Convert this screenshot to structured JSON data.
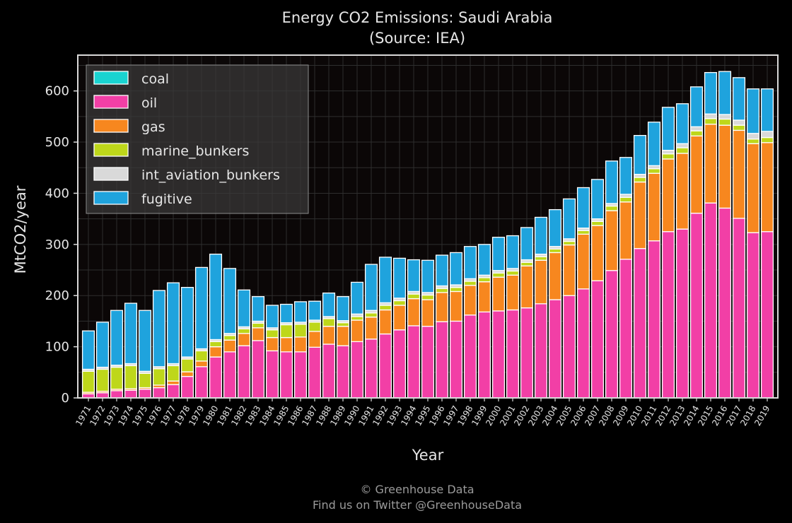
{
  "chart_data": {
    "type": "bar",
    "stacked": true,
    "title": "Energy CO2 Emissions: Saudi Arabia",
    "subtitle": "(Source: IEA)",
    "xlabel": "Year",
    "ylabel": "MtCO2/year",
    "ylim": [
      0,
      670
    ],
    "yticks": [
      0,
      100,
      200,
      300,
      400,
      500,
      600
    ],
    "grid": true,
    "legend_position": "top-left",
    "categories": [
      "1971",
      "1972",
      "1973",
      "1974",
      "1975",
      "1976",
      "1977",
      "1978",
      "1979",
      "1980",
      "1981",
      "1982",
      "1983",
      "1984",
      "1985",
      "1986",
      "1987",
      "1988",
      "1989",
      "1990",
      "1991",
      "1992",
      "1993",
      "1994",
      "1995",
      "1996",
      "1997",
      "1998",
      "1999",
      "2000",
      "2001",
      "2002",
      "2003",
      "2004",
      "2005",
      "2006",
      "2007",
      "2008",
      "2009",
      "2010",
      "2011",
      "2012",
      "2013",
      "2014",
      "2015",
      "2016",
      "2017",
      "2018",
      "2019"
    ],
    "series": [
      {
        "name": "coal",
        "color": "#19d3d0",
        "values": [
          0,
          0,
          0,
          0,
          0,
          0,
          0,
          0,
          0,
          0,
          0,
          0,
          0,
          0,
          0,
          0,
          0,
          0,
          0,
          0,
          0,
          0,
          0,
          0,
          0,
          0,
          0,
          0,
          0,
          0,
          0,
          0,
          0,
          0,
          0,
          0,
          0,
          0,
          0,
          0,
          0,
          0,
          0,
          0,
          0,
          0,
          0,
          0,
          0
        ]
      },
      {
        "name": "oil",
        "color": "#f23fa6",
        "values": [
          8,
          10,
          14,
          15,
          17,
          20,
          26,
          42,
          61,
          80,
          90,
          102,
          112,
          92,
          90,
          90,
          99,
          105,
          102,
          110,
          115,
          125,
          133,
          141,
          140,
          149,
          150,
          162,
          168,
          170,
          172,
          176,
          184,
          192,
          200,
          213,
          229,
          249,
          271,
          292,
          307,
          325,
          330,
          361,
          381,
          371,
          351,
          323,
          325
        ]
      },
      {
        "name": "gas",
        "color": "#f7871f",
        "values": [
          3,
          3,
          3,
          3,
          3,
          5,
          7,
          9,
          11,
          20,
          23,
          24,
          25,
          26,
          28,
          29,
          31,
          35,
          38,
          42,
          43,
          47,
          48,
          53,
          52,
          57,
          58,
          58,
          59,
          66,
          68,
          82,
          85,
          92,
          99,
          107,
          108,
          117,
          112,
          130,
          132,
          142,
          148,
          151,
          154,
          162,
          172,
          174,
          174
        ]
      },
      {
        "name": "marine_bunkers",
        "color": "#bed71a",
        "values": [
          41,
          43,
          43,
          45,
          28,
          32,
          30,
          25,
          20,
          10,
          9,
          9,
          9,
          15,
          25,
          25,
          18,
          15,
          7,
          7,
          8,
          9,
          9,
          9,
          9,
          8,
          8,
          8,
          8,
          8,
          8,
          7,
          7,
          7,
          7,
          7,
          8,
          9,
          9,
          9,
          9,
          10,
          11,
          10,
          11,
          12,
          10,
          9,
          10
        ]
      },
      {
        "name": "int_aviation_bunkers",
        "color": "#d9d9d9",
        "values": [
          4,
          4,
          4,
          4,
          4,
          4,
          4,
          4,
          4,
          4,
          4,
          4,
          4,
          4,
          4,
          4,
          4,
          4,
          4,
          5,
          5,
          5,
          5,
          5,
          5,
          5,
          5,
          5,
          5,
          5,
          5,
          5,
          5,
          5,
          5,
          5,
          5,
          5,
          6,
          6,
          6,
          7,
          8,
          8,
          9,
          9,
          10,
          11,
          12
        ]
      },
      {
        "name": "fugitive",
        "color": "#1fa3dd",
        "values": [
          75,
          88,
          107,
          118,
          119,
          149,
          158,
          136,
          159,
          167,
          127,
          72,
          48,
          44,
          36,
          40,
          37,
          46,
          47,
          62,
          90,
          89,
          78,
          62,
          63,
          60,
          63,
          63,
          60,
          65,
          64,
          63,
          72,
          72,
          78,
          79,
          77,
          83,
          72,
          76,
          85,
          84,
          78,
          78,
          81,
          84,
          83,
          87,
          83
        ]
      }
    ]
  },
  "footer": {
    "line1": "© Greenhouse Data",
    "line2": "Find us on Twitter @GreenhouseData"
  }
}
